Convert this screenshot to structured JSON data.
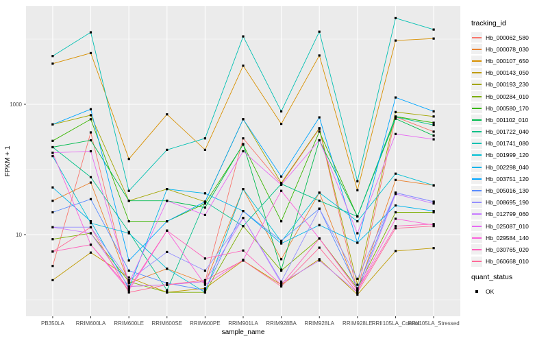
{
  "figure": {
    "background": "#FFFFFF",
    "panel_background": "#EBEBEB",
    "gridline_color": "#FFFFFF",
    "axis_text_color": "#4D4D4D",
    "point_color": "#000000"
  },
  "y_axis": {
    "title": "FPKM + 1",
    "labeled_ticks": [
      "1000",
      "10"
    ]
  },
  "x_axis": {
    "title": "sample_name"
  },
  "legend": {
    "tracking_title": "tracking_id",
    "quant_title": "quant_status",
    "quant_items": [
      {
        "label": "OK",
        "marker": "black-square"
      }
    ]
  },
  "chart_data": {
    "type": "line",
    "title": "",
    "xlabel": "sample_name",
    "ylabel": "FPKM + 1",
    "yscale": "log10",
    "ylim": [
      0.55,
      31000
    ],
    "yticks_labeled": [
      1000,
      10
    ],
    "ygrid_major": [
      10,
      1000
    ],
    "ygrid_minor": [
      1,
      100,
      10000
    ],
    "grid": true,
    "legend_position": "right",
    "point_marker": "black-square",
    "x": [
      "PB350LA",
      "RRIM600LA",
      "RRIM600LE",
      "RRIM600SE",
      "RRIM600PE",
      "RRIM901LA",
      "RRIM928BA",
      "RRIM928LA",
      "RRIM928LE",
      "RRII105LA_Control",
      "RRII105LA_Stressed"
    ],
    "series": [
      {
        "name": "Hb_000062_580",
        "color": "#F8766D",
        "values": [
          3.3,
          370,
          1.6,
          1.7,
          1.9,
          300,
          60,
          420,
          1.3,
          640,
          380
        ]
      },
      {
        "name": "Hb_000078_030",
        "color": "#EA8331",
        "values": [
          33,
          63,
          1.8,
          3.0,
          1.8,
          50,
          4.2,
          44,
          1.4,
          69,
          57
        ]
      },
      {
        "name": "Hb_000107_650",
        "color": "#D89000",
        "values": [
          4200,
          6100,
          145,
          700,
          200,
          3900,
          500,
          5600,
          48,
          9500,
          10200
        ]
      },
      {
        "name": "Hb_000143_050",
        "color": "#C09B00",
        "values": [
          2.0,
          5.3,
          2.2,
          1.3,
          1.5,
          4.0,
          1.7,
          4.2,
          1.2,
          5.6,
          6.2
        ]
      },
      {
        "name": "Hb_000193_230",
        "color": "#A3A500",
        "values": [
          490,
          680,
          33,
          50,
          32,
          590,
          62,
          430,
          1.7,
          760,
          650
        ]
      },
      {
        "name": "Hb_000284_010",
        "color": "#7CAE00",
        "values": [
          8.5,
          10.5,
          1.9,
          1.3,
          1.3,
          13.5,
          2.8,
          8.7,
          1.5,
          22,
          22
        ]
      },
      {
        "name": "Hb_000580_170",
        "color": "#39B600",
        "values": [
          275,
          590,
          16,
          16,
          30,
          240,
          16,
          380,
          19,
          650,
          520
        ]
      },
      {
        "name": "Hb_001102_010",
        "color": "#00BB4E",
        "values": [
          220,
          280,
          33,
          33,
          26,
          245,
          2.9,
          280,
          19,
          600,
          330
        ]
      },
      {
        "name": "Hb_001722_040",
        "color": "#00C087",
        "values": [
          220,
          76,
          11,
          1.4,
          32,
          13.5,
          60,
          33,
          19,
          640,
          480
        ]
      },
      {
        "name": "Hb_001741_080",
        "color": "#00C0B2",
        "values": [
          5500,
          12700,
          47,
          200,
          300,
          11000,
          780,
          13000,
          66,
          21000,
          14000
        ]
      },
      {
        "name": "Hb_001999_120",
        "color": "#00BFD3",
        "values": [
          160,
          15,
          10.5,
          3.0,
          1.3,
          50,
          7.8,
          44,
          16,
          86,
          57
        ]
      },
      {
        "name": "Hb_002298_040",
        "color": "#00B4EB",
        "values": [
          53,
          16,
          1.5,
          50,
          43,
          23,
          7.3,
          14,
          7.5,
          28,
          23
        ]
      },
      {
        "name": "Hb_003751_120",
        "color": "#00A5FF",
        "values": [
          490,
          840,
          4.0,
          16,
          32,
          590,
          78,
          630,
          7.5,
          1270,
          780
        ]
      },
      {
        "name": "Hb_005016_130",
        "color": "#598CFF",
        "values": [
          22,
          35,
          2.8,
          1.8,
          1.4,
          23,
          8.0,
          25,
          1.5,
          44,
          32
        ]
      },
      {
        "name": "Hb_008695_190",
        "color": "#9590FF",
        "values": [
          13,
          13,
          2.0,
          5.4,
          2.8,
          18,
          1.9,
          25,
          2.1,
          44,
          32
        ]
      },
      {
        "name": "Hb_012799_060",
        "color": "#C77CFF",
        "values": [
          13,
          10.5,
          1.6,
          1.7,
          1.9,
          18,
          1.8,
          4.0,
          1.3,
          42,
          30
        ]
      },
      {
        "name": "Hb_025087_010",
        "color": "#E76BF3",
        "values": [
          180,
          190,
          1.8,
          33,
          20,
          190,
          58,
          280,
          10.5,
          350,
          290
        ]
      },
      {
        "name": "Hb_029584_140",
        "color": "#FA62DB",
        "values": [
          180,
          7.0,
          1.4,
          11.5,
          1.7,
          4.1,
          47,
          8.7,
          1.4,
          17.5,
          14
        ]
      },
      {
        "name": "Hb_030765_020",
        "color": "#FF62BC",
        "values": [
          5.5,
          7.0,
          1.5,
          11.5,
          4.3,
          5.7,
          1.7,
          8.7,
          1.4,
          13.5,
          14.5
        ]
      },
      {
        "name": "Hb_060668_010",
        "color": "#FF6A98",
        "values": [
          5.5,
          13,
          1.3,
          1.7,
          2.0,
          4.0,
          1.6,
          6.3,
          1.3,
          12.5,
          13.5
        ]
      }
    ]
  }
}
